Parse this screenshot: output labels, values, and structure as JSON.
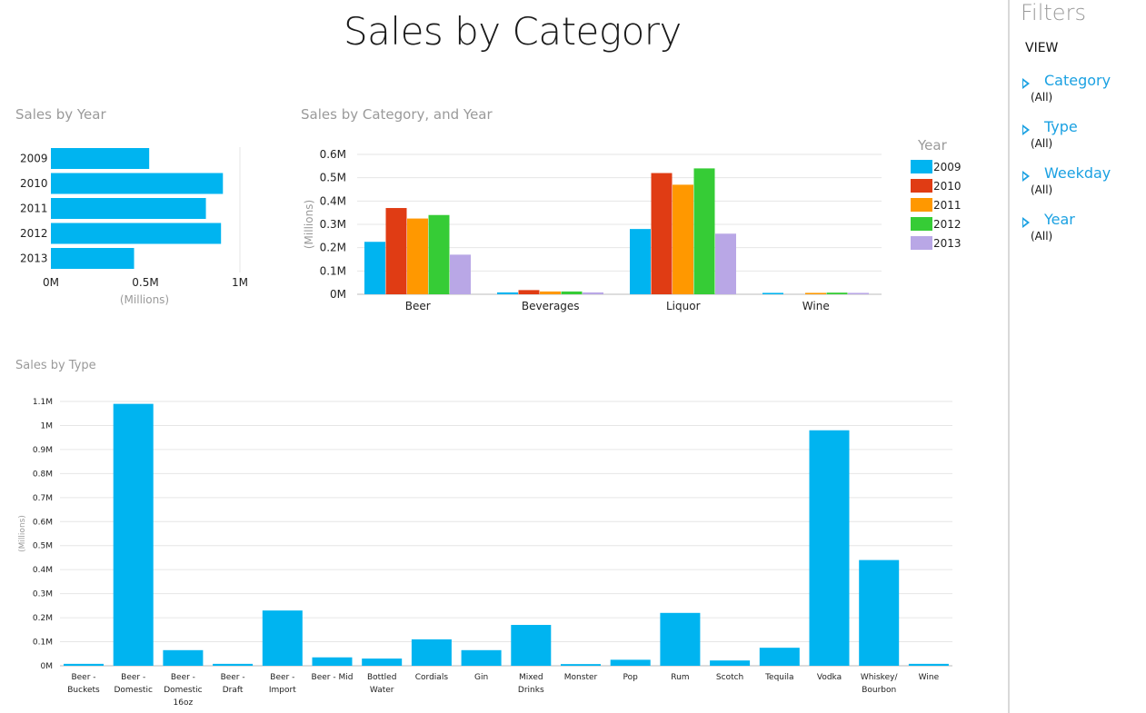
{
  "page": {
    "title": "Sales by Category"
  },
  "sections": {
    "by_year": "Sales by Year",
    "by_category_year": "Sales by Category, and Year",
    "by_type": "Sales by Type"
  },
  "filters": {
    "title": "Filters",
    "view_label": "VIEW",
    "items": [
      {
        "label": "Category",
        "value": "(All)",
        "icon": "triangle-right-icon"
      },
      {
        "label": "Type",
        "value": "(All)",
        "icon": "triangle-right-icon"
      },
      {
        "label": "Weekday",
        "value": "(All)",
        "icon": "triangle-right-icon"
      },
      {
        "label": "Year",
        "value": "(All)",
        "icon": "triangle-right-icon"
      }
    ]
  },
  "colors": {
    "bar": "#00b4f0",
    "y2009": "#00b4f0",
    "y2010": "#e03c14",
    "y2011": "#ff9800",
    "y2012": "#36cc36",
    "y2013": "#b9a7e6",
    "accent": "#1ba1e2"
  },
  "chart_data": [
    {
      "type": "bar",
      "orientation": "horizontal",
      "categories": [
        "2009",
        "2010",
        "2011",
        "2012",
        "2013"
      ],
      "values": [
        0.52,
        0.91,
        0.82,
        0.9,
        0.44
      ],
      "xlabel": "(Millions)",
      "xticks": [
        "0M",
        "0.5M",
        "1M"
      ],
      "xlim": [
        0,
        1.0
      ]
    },
    {
      "type": "bar",
      "categories": [
        "Beer",
        "Beverages",
        "Liquor",
        "Wine"
      ],
      "series": [
        {
          "name": "2009",
          "values": [
            0.225,
            0.008,
            0.28,
            0.006
          ]
        },
        {
          "name": "2010",
          "values": [
            0.37,
            0.018,
            0.52,
            0.0
          ]
        },
        {
          "name": "2011",
          "values": [
            0.325,
            0.012,
            0.47,
            0.006
          ]
        },
        {
          "name": "2012",
          "values": [
            0.34,
            0.012,
            0.54,
            0.007
          ]
        },
        {
          "name": "2013",
          "values": [
            0.17,
            0.008,
            0.26,
            0.006
          ]
        }
      ],
      "legend_title": "Year",
      "legend_position": "right",
      "ylabel": "(Millions)",
      "yticks": [
        "0M",
        "0.1M",
        "0.2M",
        "0.3M",
        "0.4M",
        "0.5M",
        "0.6M"
      ],
      "ylim": [
        0,
        0.6
      ],
      "grid": true
    },
    {
      "type": "bar",
      "categories": [
        "Beer - Buckets",
        "Beer - Domestic",
        "Beer - Domestic 16oz",
        "Beer - Draft",
        "Beer - Import",
        "Beer - Mid",
        "Bottled Water",
        "Cordials",
        "Gin",
        "Mixed Drinks",
        "Monster",
        "Pop",
        "Rum",
        "Scotch",
        "Tequila",
        "Vodka",
        "Whiskey/ Bourbon",
        "Wine"
      ],
      "category_lines": [
        [
          "Beer -",
          "Buckets"
        ],
        [
          "Beer -",
          "Domestic"
        ],
        [
          "Beer -",
          "Domestic",
          "16oz"
        ],
        [
          "Beer -",
          "Draft"
        ],
        [
          "Beer -",
          "Import"
        ],
        [
          "Beer - Mid"
        ],
        [
          "Bottled",
          "Water"
        ],
        [
          "Cordials"
        ],
        [
          "Gin"
        ],
        [
          "Mixed",
          "Drinks"
        ],
        [
          "Monster"
        ],
        [
          "Pop"
        ],
        [
          "Rum"
        ],
        [
          "Scotch"
        ],
        [
          "Tequila"
        ],
        [
          "Vodka"
        ],
        [
          "Whiskey/",
          "Bourbon"
        ],
        [
          "Wine"
        ]
      ],
      "values": [
        0.008,
        1.09,
        0.065,
        0.008,
        0.23,
        0.035,
        0.03,
        0.11,
        0.065,
        0.17,
        0.007,
        0.025,
        0.22,
        0.022,
        0.075,
        0.98,
        0.44,
        0.008
      ],
      "ylabel": "(Millions)",
      "yticks": [
        "0M",
        "0.1M",
        "0.2M",
        "0.3M",
        "0.4M",
        "0.5M",
        "0.6M",
        "0.7M",
        "0.8M",
        "0.9M",
        "1M",
        "1.1M"
      ],
      "ylim": [
        0,
        1.1
      ],
      "grid": true
    }
  ]
}
